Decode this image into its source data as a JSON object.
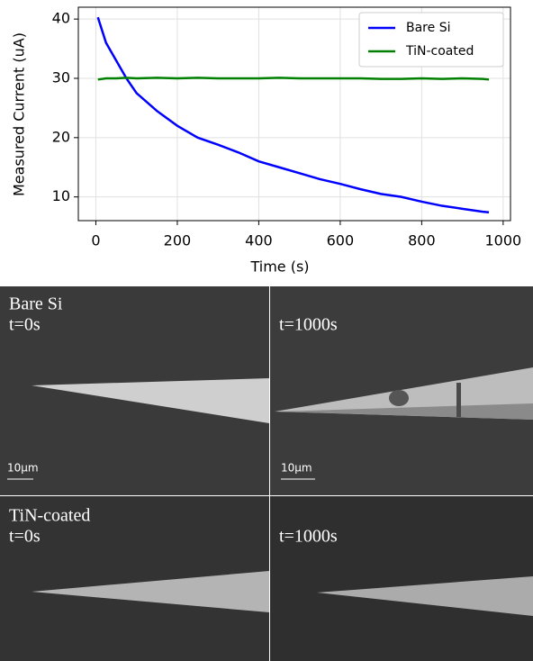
{
  "chart_data": {
    "type": "line",
    "x_label": "Time (s)",
    "y_label": "Measured Current (uA)",
    "x": [
      5,
      25,
      50,
      75,
      100,
      150,
      200,
      250,
      300,
      350,
      400,
      450,
      500,
      550,
      600,
      650,
      700,
      750,
      800,
      850,
      900,
      950,
      965
    ],
    "series": [
      {
        "name": "Bare Si",
        "color": "#0000ff",
        "values": [
          40.3,
          36,
          33,
          30,
          27.5,
          24.5,
          22,
          20,
          18.8,
          17.5,
          16,
          15,
          14,
          13,
          12.2,
          11.3,
          10.5,
          10,
          9.2,
          8.5,
          8,
          7.5,
          7.4
        ]
      },
      {
        "name": "TiN-coated",
        "color": "#008000",
        "values": [
          29.8,
          30,
          30,
          30.1,
          30,
          30.1,
          30,
          30.1,
          30,
          30,
          30,
          30.1,
          30,
          30,
          30,
          30,
          29.9,
          29.9,
          30,
          29.9,
          30,
          29.9,
          29.8
        ]
      }
    ],
    "xlim": [
      -43,
      1018
    ],
    "xticks": [
      0,
      200,
      400,
      600,
      800,
      1000
    ],
    "ylim": [
      6,
      42
    ],
    "yticks": [
      10,
      20,
      30,
      40
    ],
    "grid": true,
    "legend": "upper right"
  },
  "panels": [
    {
      "title": "Bare Si",
      "time": "t=0s",
      "scale": "10μm"
    },
    {
      "time": "t=1000s",
      "scale": "10μm"
    },
    {
      "title": "TiN-coated",
      "time": "t=0s"
    },
    {
      "time": "t=1000s"
    }
  ]
}
